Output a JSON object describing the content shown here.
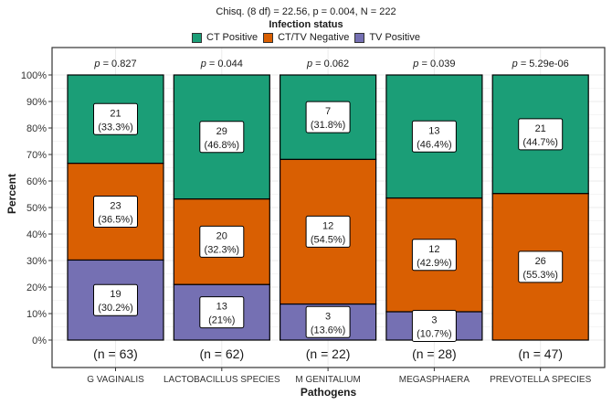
{
  "chart_data": {
    "type": "bar",
    "stacked": "percent",
    "subtitle": "Chisq. (8 df) = 22.56, p = 0.004, N = 222",
    "legend": {
      "title": "Infection status",
      "placement": "top",
      "entries": [
        {
          "name": "CT Positive",
          "color": "#1B9E77"
        },
        {
          "name": "CT/TV Negative",
          "color": "#D95F02"
        },
        {
          "name": "TV Positive",
          "color": "#7570B3"
        }
      ]
    },
    "xlabel": "Pathogens",
    "ylabel": "Percent",
    "ylim": [
      0,
      100
    ],
    "yticks": [
      "0%",
      "10%",
      "20%",
      "30%",
      "40%",
      "50%",
      "60%",
      "70%",
      "80%",
      "90%",
      "100%"
    ],
    "grid": true,
    "categories": [
      "G VAGINALIS",
      "LACTOBACILLUS SPECIES",
      "M GENITALIUM",
      "MEGASPHAERA",
      "PREVOTELLA SPECIES"
    ],
    "p_values": [
      "0.827",
      "0.044",
      "0.062",
      "0.039",
      "5.29e-06"
    ],
    "p_prefix": "p",
    "n_labels": [
      "(n = 63)",
      "(n = 62)",
      "(n = 22)",
      "(n = 28)",
      "(n = 47)"
    ],
    "series": [
      {
        "name": "CT Positive",
        "counts": [
          21,
          29,
          7,
          13,
          21
        ],
        "percents": [
          33.3,
          46.8,
          31.8,
          46.4,
          44.7
        ],
        "labels": [
          "(33.3%)",
          "(46.8%)",
          "(31.8%)",
          "(46.4%)",
          "(44.7%)"
        ]
      },
      {
        "name": "CT/TV Negative",
        "counts": [
          23,
          20,
          12,
          12,
          26
        ],
        "percents": [
          36.5,
          32.3,
          54.5,
          42.9,
          55.3
        ],
        "labels": [
          "(36.5%)",
          "(32.3%)",
          "(54.5%)",
          "(42.9%)",
          "(55.3%)"
        ]
      },
      {
        "name": "TV Positive",
        "counts": [
          19,
          13,
          3,
          3,
          0
        ],
        "percents": [
          30.2,
          21.0,
          13.6,
          10.7,
          0
        ],
        "labels": [
          "(30.2%)",
          "(21%)",
          "(13.6%)",
          "(10.7%)",
          ""
        ]
      }
    ]
  }
}
